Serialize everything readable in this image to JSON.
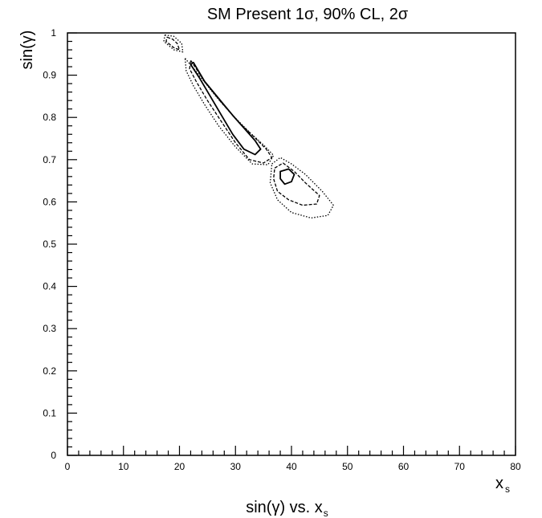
{
  "chart_data": {
    "type": "contour",
    "title": "SM Present 1σ, 90% CL, 2σ",
    "xlabel": "x",
    "xlabel_sub": "s",
    "ylabel": "sin(γ)",
    "caption_prefix": "sin(γ) vs. x",
    "caption_sub": "s",
    "xlim": [
      0,
      80
    ],
    "ylim": [
      0,
      1
    ],
    "x_ticks": [
      0,
      10,
      20,
      30,
      40,
      50,
      60,
      70,
      80
    ],
    "x_tick_labels": [
      "0",
      "10",
      "20",
      "30",
      "40",
      "50",
      "60",
      "70",
      "80"
    ],
    "y_ticks": [
      0,
      0.1,
      0.2,
      0.3,
      0.4,
      0.5,
      0.6,
      0.7,
      0.8,
      0.9,
      1
    ],
    "y_tick_labels": [
      "0",
      "0.1",
      "0.2",
      "0.3",
      "0.4",
      "0.5",
      "0.6",
      "0.7",
      "0.8",
      "0.9",
      "1"
    ],
    "grid": false,
    "series": [
      {
        "name": "1σ",
        "style": "solid",
        "contours": [
          [
            [
              22.5,
              0.93
            ],
            [
              24.5,
              0.885
            ],
            [
              27.0,
              0.845
            ],
            [
              29.5,
              0.805
            ],
            [
              31.5,
              0.775
            ],
            [
              33.5,
              0.745
            ],
            [
              34.5,
              0.725
            ],
            [
              33.5,
              0.712
            ],
            [
              31.5,
              0.725
            ],
            [
              29.5,
              0.76
            ],
            [
              27.5,
              0.805
            ],
            [
              25.5,
              0.85
            ],
            [
              23.5,
              0.895
            ],
            [
              22.0,
              0.925
            ],
            [
              22.5,
              0.93
            ]
          ],
          [
            [
              38.0,
              0.672
            ],
            [
              39.5,
              0.678
            ],
            [
              40.5,
              0.665
            ],
            [
              40.0,
              0.648
            ],
            [
              38.8,
              0.642
            ],
            [
              38.0,
              0.655
            ],
            [
              38.0,
              0.672
            ]
          ]
        ]
      },
      {
        "name": "90% CL",
        "style": "dashed",
        "contours": [
          [
            [
              22.0,
              0.935
            ],
            [
              24.5,
              0.885
            ],
            [
              27.5,
              0.835
            ],
            [
              30.5,
              0.79
            ],
            [
              33.0,
              0.758
            ],
            [
              35.5,
              0.725
            ],
            [
              36.5,
              0.705
            ],
            [
              35.0,
              0.692
            ],
            [
              32.5,
              0.7
            ],
            [
              30.0,
              0.74
            ],
            [
              27.5,
              0.79
            ],
            [
              25.0,
              0.84
            ],
            [
              23.0,
              0.885
            ],
            [
              21.8,
              0.915
            ],
            [
              22.0,
              0.935
            ]
          ],
          [
            [
              37.0,
              0.68
            ],
            [
              38.5,
              0.692
            ],
            [
              40.5,
              0.672
            ],
            [
              42.5,
              0.645
            ],
            [
              45.0,
              0.615
            ],
            [
              44.5,
              0.595
            ],
            [
              42.0,
              0.592
            ],
            [
              39.5,
              0.605
            ],
            [
              37.5,
              0.625
            ],
            [
              36.8,
              0.655
            ],
            [
              37.0,
              0.68
            ]
          ],
          [
            [
              17.8,
              0.99
            ],
            [
              18.8,
              0.985
            ],
            [
              19.6,
              0.975
            ],
            [
              20.0,
              0.96
            ],
            [
              19.0,
              0.965
            ],
            [
              17.6,
              0.98
            ],
            [
              17.8,
              0.99
            ]
          ]
        ]
      },
      {
        "name": "2σ",
        "style": "dotted",
        "contours": [
          [
            [
              21.0,
              0.94
            ],
            [
              23.5,
              0.9
            ],
            [
              26.5,
              0.85
            ],
            [
              29.5,
              0.805
            ],
            [
              32.5,
              0.765
            ],
            [
              35.0,
              0.735
            ],
            [
              36.8,
              0.71
            ],
            [
              35.8,
              0.688
            ],
            [
              33.0,
              0.69
            ],
            [
              30.0,
              0.73
            ],
            [
              27.0,
              0.78
            ],
            [
              24.5,
              0.83
            ],
            [
              22.5,
              0.875
            ],
            [
              21.2,
              0.91
            ],
            [
              21.0,
              0.94
            ]
          ],
          [
            [
              36.5,
              0.69
            ],
            [
              38.0,
              0.705
            ],
            [
              40.0,
              0.69
            ],
            [
              42.5,
              0.665
            ],
            [
              45.5,
              0.625
            ],
            [
              47.5,
              0.592
            ],
            [
              46.5,
              0.568
            ],
            [
              43.5,
              0.562
            ],
            [
              40.0,
              0.575
            ],
            [
              37.5,
              0.605
            ],
            [
              36.2,
              0.645
            ],
            [
              36.5,
              0.69
            ]
          ],
          [
            [
              17.4,
              0.995
            ],
            [
              19.0,
              0.992
            ],
            [
              20.4,
              0.975
            ],
            [
              20.6,
              0.955
            ],
            [
              19.0,
              0.96
            ],
            [
              17.2,
              0.98
            ],
            [
              17.4,
              0.995
            ]
          ]
        ]
      }
    ]
  }
}
